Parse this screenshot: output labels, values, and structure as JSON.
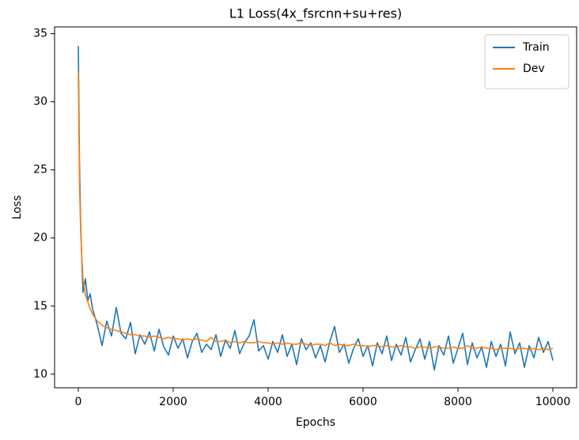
{
  "chart_data": {
    "type": "line",
    "title": "L1 Loss(4x_fsrcnn+su+res)",
    "xlabel": "Epochs",
    "ylabel": "Loss",
    "x": [
      0,
      25,
      50,
      75,
      100,
      150,
      200,
      250,
      300,
      400,
      500,
      600,
      700,
      800,
      900,
      1000,
      1100,
      1200,
      1300,
      1400,
      1500,
      1600,
      1700,
      1800,
      1900,
      2000,
      2100,
      2200,
      2300,
      2400,
      2500,
      2600,
      2700,
      2800,
      2900,
      3000,
      3100,
      3200,
      3300,
      3400,
      3500,
      3600,
      3700,
      3800,
      3900,
      4000,
      4100,
      4200,
      4300,
      4400,
      4500,
      4600,
      4700,
      4800,
      4900,
      5000,
      5100,
      5200,
      5300,
      5400,
      5500,
      5600,
      5700,
      5800,
      5900,
      6000,
      6100,
      6200,
      6300,
      6400,
      6500,
      6600,
      6700,
      6800,
      6900,
      7000,
      7100,
      7200,
      7300,
      7400,
      7500,
      7600,
      7700,
      7800,
      7900,
      8000,
      8100,
      8200,
      8300,
      8400,
      8500,
      8600,
      8700,
      8800,
      8900,
      9000,
      9100,
      9200,
      9300,
      9400,
      9500,
      9600,
      9700,
      9800,
      9900,
      10000
    ],
    "series": [
      {
        "name": "Train",
        "color": "#1f77b4",
        "values": [
          34.1,
          25.5,
          21.0,
          18.2,
          16.0,
          17.0,
          15.4,
          15.9,
          14.8,
          13.6,
          12.1,
          13.9,
          12.8,
          14.9,
          13.0,
          12.6,
          13.8,
          11.5,
          12.9,
          12.2,
          13.1,
          11.7,
          13.3,
          12.0,
          11.4,
          12.8,
          11.9,
          12.6,
          11.2,
          12.4,
          13.0,
          11.6,
          12.2,
          11.8,
          12.9,
          11.3,
          12.5,
          11.9,
          13.2,
          11.5,
          12.3,
          12.8,
          14.0,
          11.7,
          12.1,
          11.1,
          12.4,
          11.6,
          12.9,
          11.3,
          12.2,
          10.7,
          12.6,
          11.8,
          12.3,
          11.2,
          12.1,
          10.9,
          12.4,
          13.5,
          11.6,
          12.2,
          10.8,
          11.9,
          12.6,
          11.3,
          12.1,
          10.6,
          12.3,
          11.5,
          12.8,
          11.0,
          12.2,
          11.4,
          12.7,
          10.9,
          11.8,
          12.6,
          11.1,
          12.4,
          10.3,
          12.1,
          11.4,
          12.8,
          10.8,
          11.9,
          13.0,
          10.7,
          12.3,
          11.2,
          12.0,
          10.5,
          12.4,
          11.3,
          12.2,
          10.6,
          13.1,
          11.5,
          12.3,
          10.5,
          12.1,
          11.2,
          12.7,
          11.6,
          12.4,
          11.0
        ]
      },
      {
        "name": "Dev",
        "color": "#ff7f0e",
        "values": [
          32.2,
          24.0,
          20.5,
          18.5,
          17.0,
          15.8,
          15.3,
          14.8,
          14.4,
          13.9,
          13.6,
          13.4,
          13.3,
          13.2,
          13.1,
          13.0,
          12.9,
          12.9,
          12.8,
          12.8,
          12.7,
          12.8,
          12.7,
          12.6,
          12.7,
          12.6,
          12.6,
          12.5,
          12.6,
          12.5,
          12.6,
          12.5,
          12.4,
          12.7,
          12.4,
          12.4,
          12.5,
          12.3,
          12.4,
          12.3,
          12.4,
          12.3,
          12.3,
          12.4,
          12.3,
          12.3,
          12.2,
          12.3,
          12.2,
          12.3,
          12.2,
          12.2,
          12.3,
          12.2,
          12.1,
          12.2,
          12.2,
          12.1,
          12.3,
          12.1,
          12.2,
          12.1,
          12.1,
          12.2,
          12.1,
          12.1,
          12.0,
          12.1,
          12.1,
          12.0,
          12.1,
          12.0,
          12.0,
          12.1,
          12.0,
          12.0,
          11.9,
          12.0,
          12.0,
          11.9,
          12.0,
          12.0,
          11.9,
          11.9,
          12.0,
          11.9,
          11.9,
          12.1,
          11.9,
          11.9,
          12.0,
          11.9,
          11.9,
          11.8,
          11.9,
          11.9,
          11.9,
          11.8,
          11.9,
          11.9,
          11.8,
          11.9,
          11.8,
          11.9,
          11.8,
          11.9
        ]
      }
    ],
    "xlim": [
      -500,
      10500
    ],
    "ylim": [
      9.0,
      35.5
    ],
    "xticks": [
      0,
      2000,
      4000,
      6000,
      8000,
      10000
    ],
    "yticks": [
      10,
      15,
      20,
      25,
      30,
      35
    ],
    "grid": false,
    "legend": "upper right"
  }
}
